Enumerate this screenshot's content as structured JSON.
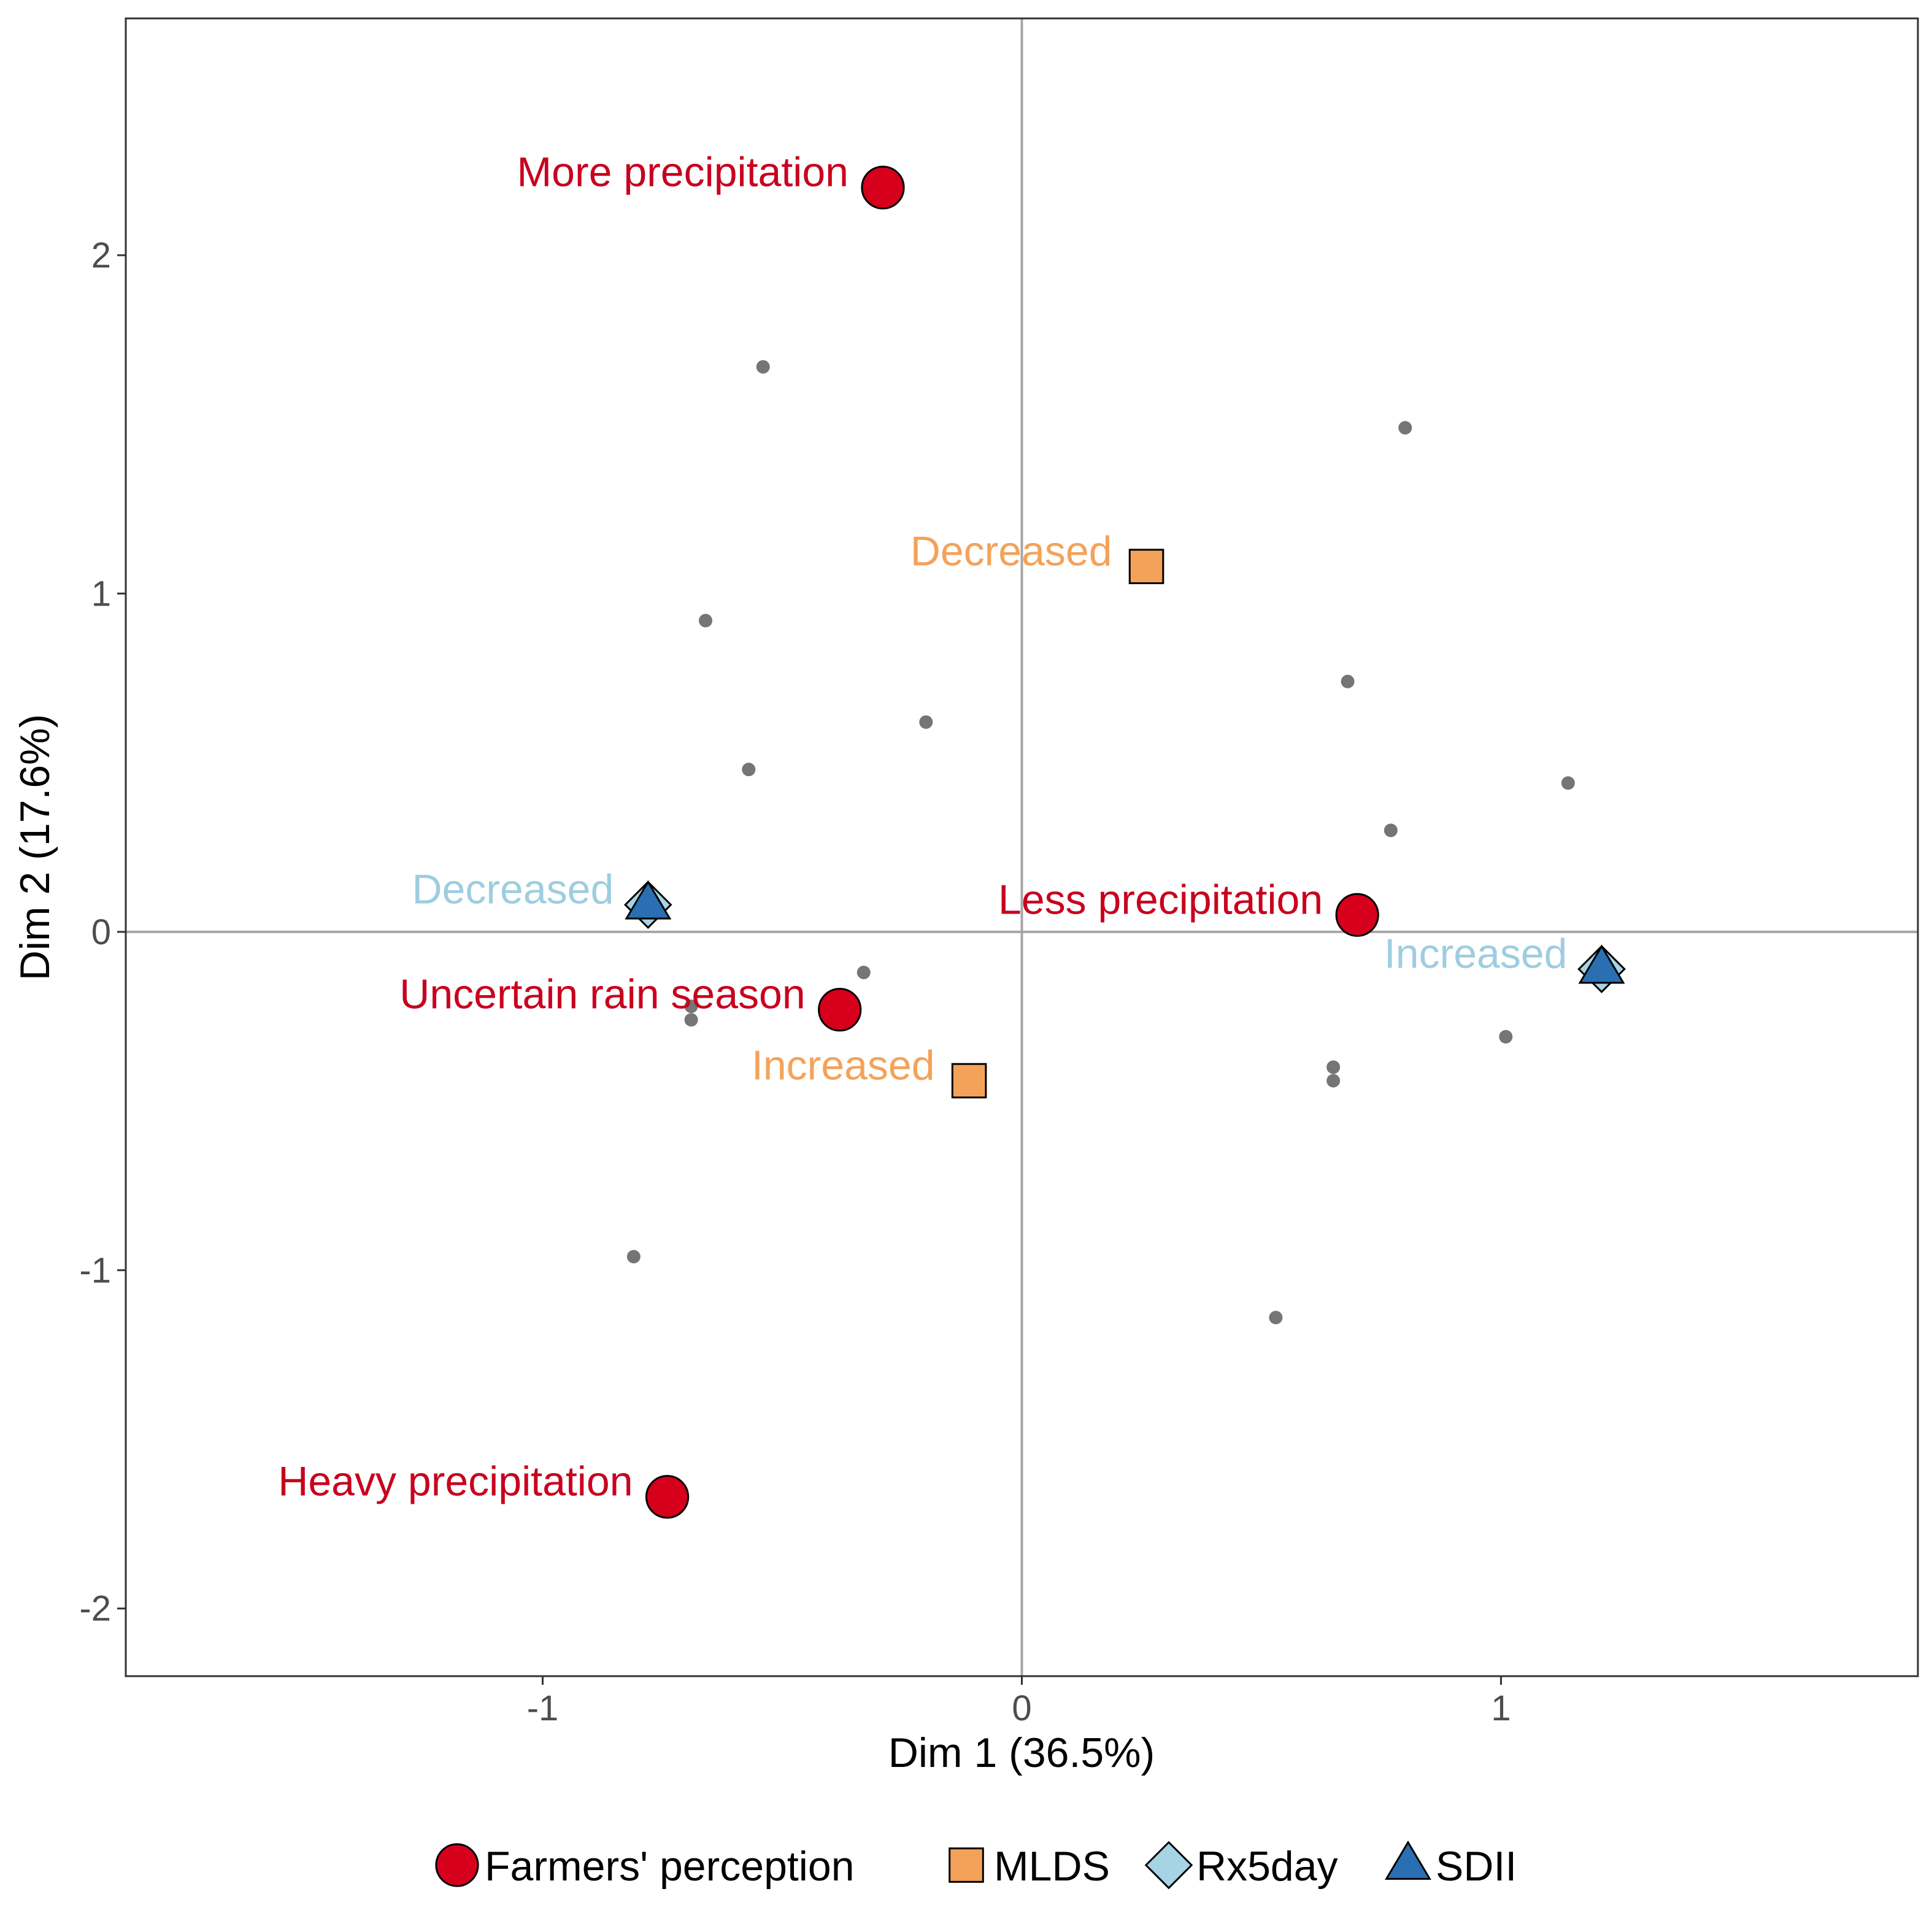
{
  "chart_data": {
    "type": "scatter",
    "xlabel": "Dim 1 (36.5%)",
    "ylabel": "Dim 2 (17.6%)",
    "xlim": [
      -1.87,
      1.87
    ],
    "ylim": [
      -2.2,
      2.7
    ],
    "x_ticks": [
      {
        "value": -1,
        "label": "-1"
      },
      {
        "value": 0,
        "label": "0"
      },
      {
        "value": 1,
        "label": "1"
      }
    ],
    "y_ticks": [
      {
        "value": -2,
        "label": "-2"
      },
      {
        "value": -1,
        "label": "-1"
      },
      {
        "value": 0,
        "label": "0"
      },
      {
        "value": 1,
        "label": "1"
      },
      {
        "value": 2,
        "label": "2"
      }
    ],
    "grid": false,
    "reference_lines": {
      "x": 0,
      "y": 0
    },
    "legend_position": "bottom",
    "individuals": [
      {
        "x": -0.54,
        "y": 1.67
      },
      {
        "x": 0.8,
        "y": 1.49
      },
      {
        "x": -0.66,
        "y": 0.92
      },
      {
        "x": 0.68,
        "y": 0.74
      },
      {
        "x": -0.2,
        "y": 0.62
      },
      {
        "x": -0.57,
        "y": 0.48
      },
      {
        "x": 1.14,
        "y": 0.44
      },
      {
        "x": 0.77,
        "y": 0.3
      },
      {
        "x": -0.33,
        "y": -0.12
      },
      {
        "x": -0.69,
        "y": -0.22
      },
      {
        "x": -0.69,
        "y": -0.26
      },
      {
        "x": 1.01,
        "y": -0.31
      },
      {
        "x": 0.65,
        "y": -0.4
      },
      {
        "x": 0.65,
        "y": -0.44
      },
      {
        "x": -0.81,
        "y": -0.96
      },
      {
        "x": 0.53,
        "y": -1.14
      }
    ],
    "series": [
      {
        "name": "Farmers' perception",
        "shape": "circle",
        "color": "#d6001c",
        "label_color": "#c8001e",
        "points": [
          {
            "label": "More precipitation",
            "x": -0.29,
            "y": 2.2
          },
          {
            "label": "Less precipitation",
            "x": 0.7,
            "y": 0.05
          },
          {
            "label": "Uncertain rain season",
            "x": -0.38,
            "y": -0.23
          },
          {
            "label": "Heavy precipitation",
            "x": -0.74,
            "y": -1.67
          }
        ]
      },
      {
        "name": "MLDS",
        "shape": "square",
        "color": "#f4a259",
        "label_color": "#f4a259",
        "points": [
          {
            "label": "Decreased",
            "x": 0.26,
            "y": 1.08
          },
          {
            "label": "Increased",
            "x": -0.11,
            "y": -0.44
          }
        ]
      },
      {
        "name": "Rx5day",
        "shape": "diamond",
        "color": "#a6d4e4",
        "label_color": "#9ecde0",
        "points": [
          {
            "label": "Decreased",
            "x": -0.78,
            "y": 0.08
          },
          {
            "label": "Increased",
            "x": 1.21,
            "y": -0.11
          }
        ]
      },
      {
        "name": "SDII",
        "shape": "triangle",
        "color": "#2a6fb2",
        "label_color": "#2a6fb2",
        "points": [
          {
            "label": "",
            "x": -0.78,
            "y": 0.08
          },
          {
            "label": "",
            "x": 1.21,
            "y": -0.11
          }
        ]
      }
    ]
  }
}
